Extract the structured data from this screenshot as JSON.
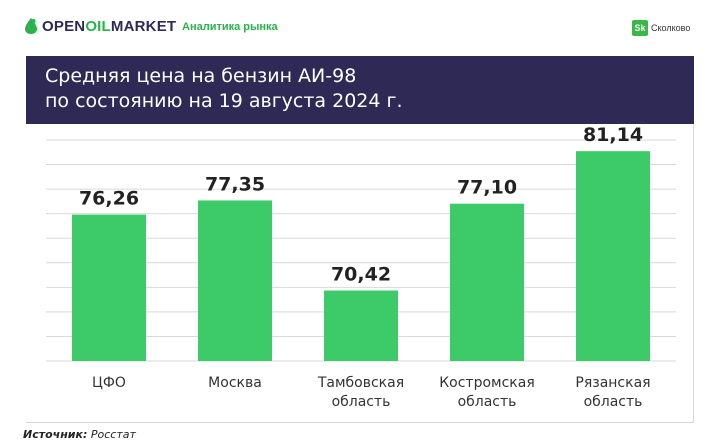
{
  "brand": {
    "logo_part1": "OPEN",
    "logo_part2": "OIL",
    "logo_part3": "MARKET",
    "tagline": "Аналитика рынка",
    "partner_mark": "Sk",
    "partner_name": "Сколково"
  },
  "colors": {
    "brand_green": "#2bb24c",
    "bar_green": "#3ccb68",
    "title_band": "#2e2a55",
    "grid": "#d9d9d9"
  },
  "chart_data": {
    "type": "bar",
    "title": [
      "Средняя цена на бензин АИ-98",
      "по состоянию на 19 августа 2024 г."
    ],
    "categories": [
      [
        "ЦФО"
      ],
      [
        "Москва"
      ],
      [
        "Тамбовская",
        "область"
      ],
      [
        "Костромская",
        "область"
      ],
      [
        "Рязанская",
        "область"
      ]
    ],
    "values": [
      76.26,
      77.35,
      70.42,
      77.1,
      81.14
    ],
    "value_labels": [
      "76,26",
      "77,35",
      "70,42",
      "77,10",
      "81,14"
    ],
    "ylim": [
      65,
      82
    ],
    "grid": true,
    "legend": "none"
  },
  "source": {
    "label": "Источник:",
    "value": "Росстат"
  }
}
